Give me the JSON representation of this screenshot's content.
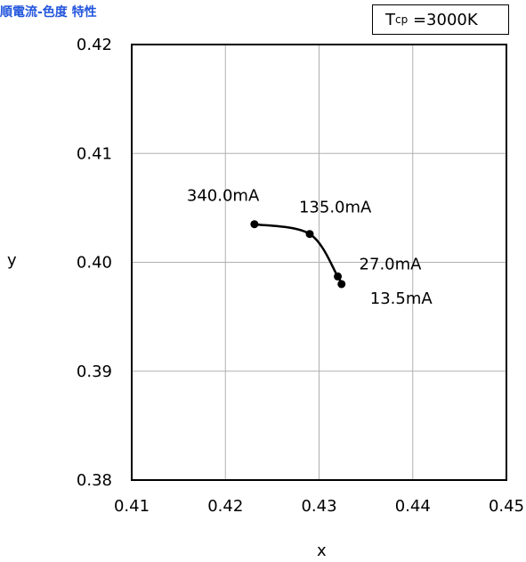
{
  "title": "順電流-色度 特性",
  "tcp": {
    "symbol": "T",
    "sub": "cp",
    "value": "=3000K"
  },
  "chart_data": {
    "type": "line",
    "title": "",
    "xlabel": "x",
    "ylabel": "y",
    "xlim": [
      0.41,
      0.45
    ],
    "ylim": [
      0.38,
      0.42
    ],
    "xticks": [
      "0.41",
      "0.42",
      "0.43",
      "0.44",
      "0.45"
    ],
    "yticks": [
      "0.42",
      "0.41",
      "0.40",
      "0.39",
      "0.38"
    ],
    "grid": true,
    "series": [
      {
        "points": [
          {
            "x": 0.4231,
            "y": 0.4035,
            "label": "340.0mA"
          },
          {
            "x": 0.429,
            "y": 0.4026,
            "label": "135.0mA"
          },
          {
            "x": 0.432,
            "y": 0.3987,
            "label": "27.0mA"
          },
          {
            "x": 0.4324,
            "y": 0.398,
            "label": "13.5mA"
          }
        ]
      }
    ]
  }
}
